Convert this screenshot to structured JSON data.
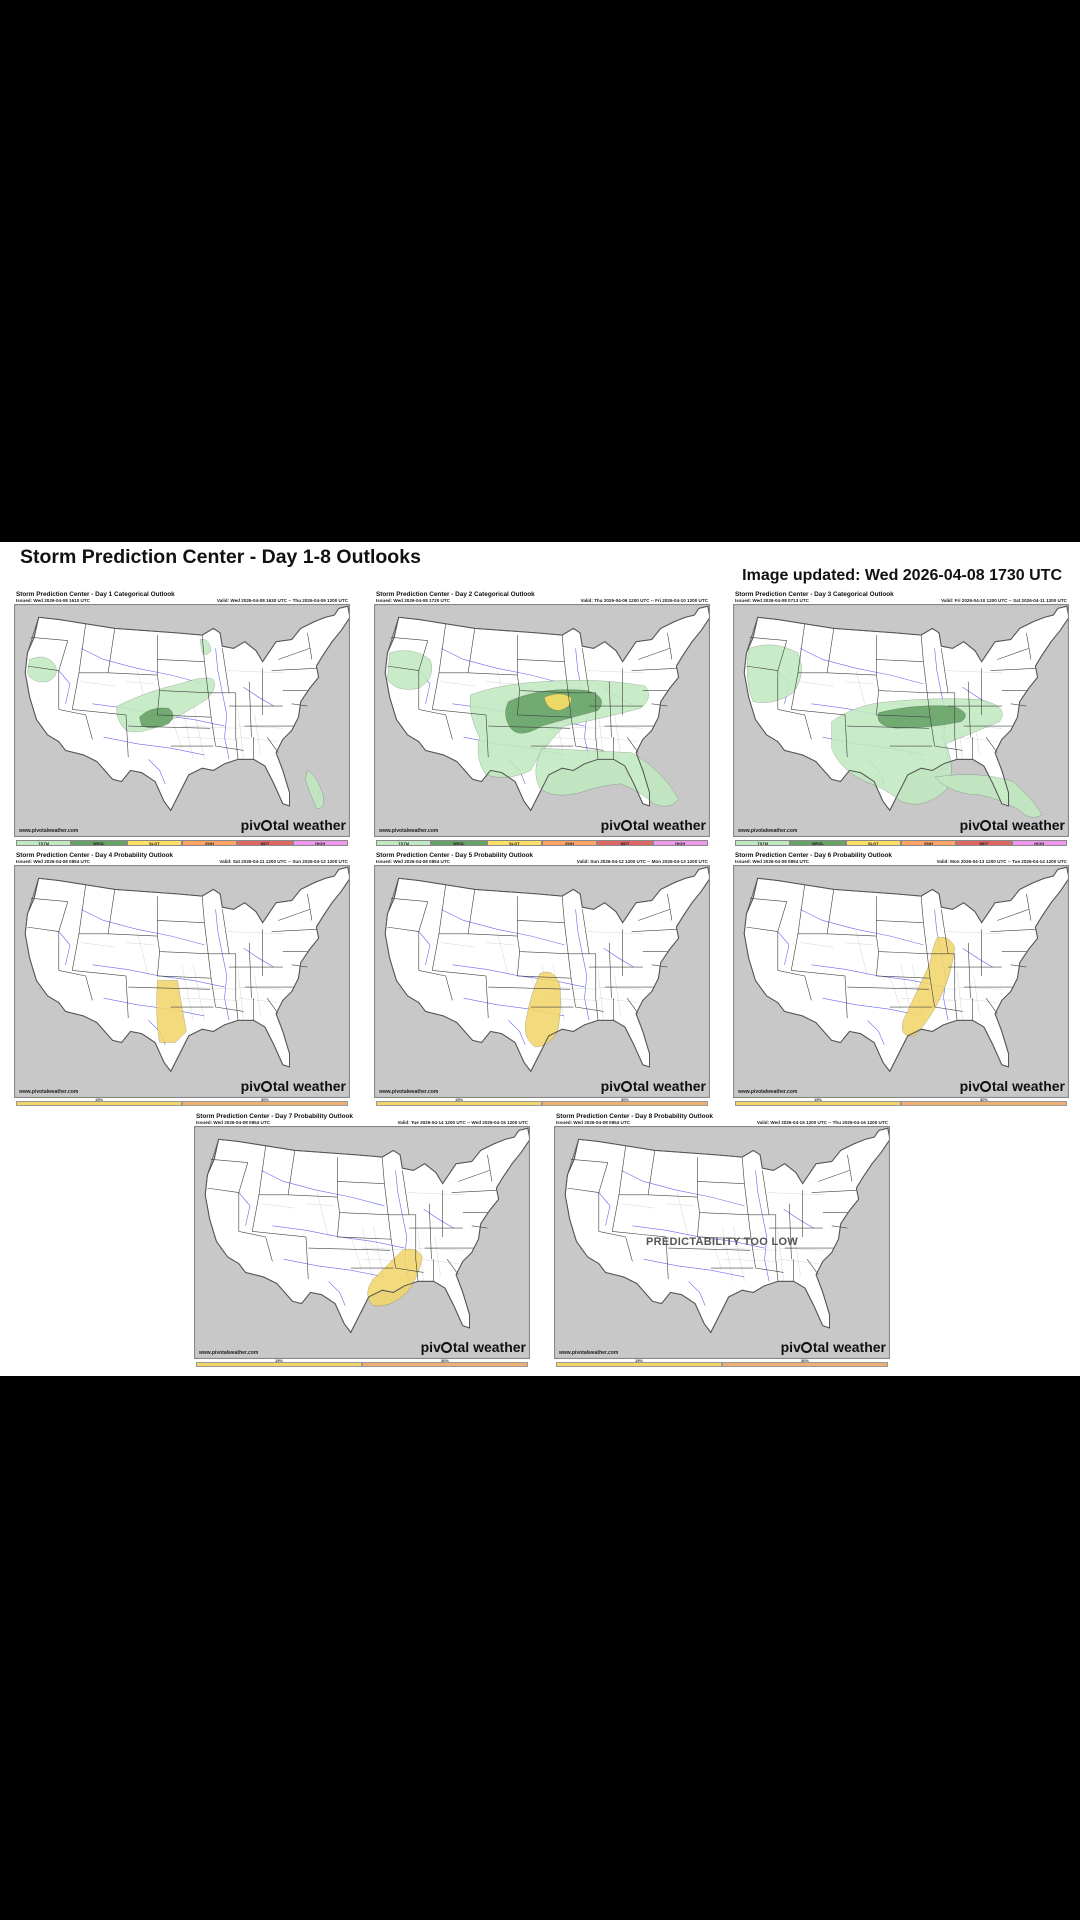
{
  "page": {
    "title": "Storm Prediction Center - Day 1-8 Outlooks",
    "updated": "Image updated: Wed 2026-04-08 1730 UTC"
  },
  "colors": {
    "tstm": "#c1e9c1",
    "mrgl": "#66a366",
    "slgt": "#ffe066",
    "enh": "#ffa366",
    "mdt": "#e06666",
    "high": "#ee99ee",
    "prob15": "#f2d66b",
    "prob30": "#f0b073",
    "land": "#ffffff",
    "outside": "#c8c8c8"
  },
  "categorical_legend": [
    "TSTM",
    "MRGL",
    "SLGT",
    "ENH",
    "MDT",
    "HIGH"
  ],
  "probability_legend": [
    "15%",
    "30%"
  ],
  "watermark": {
    "pre": "piv",
    "post": "tal weather"
  },
  "site": "www.pivotalweather.com",
  "outlooks": [
    {
      "day": 1,
      "kind": "categorical",
      "title": "Storm Prediction Center - Day 1 Categorical Outlook",
      "issued": "Issued: Wed 2026-04-08 1610 UTC",
      "valid": "Valid: Wed 2026-04-08 1630 UTC -- Thu 2026-04-09 1200 UTC",
      "areas": [
        "tstm",
        "mrgl"
      ]
    },
    {
      "day": 2,
      "kind": "categorical",
      "title": "Storm Prediction Center - Day 2 Categorical Outlook",
      "issued": "Issued: Wed 2026-04-08 1720 UTC",
      "valid": "Valid: Thu 2026-04-09 1200 UTC -- Fri 2026-04-10 1200 UTC",
      "areas": [
        "tstm",
        "mrgl",
        "slgt"
      ]
    },
    {
      "day": 3,
      "kind": "categorical",
      "title": "Storm Prediction Center - Day 3 Categorical Outlook",
      "issued": "Issued: Wed 2026-04-08 0713 UTC",
      "valid": "Valid: Fri 2026-04-10 1200 UTC -- Sat 2026-04-11 1200 UTC",
      "areas": [
        "tstm",
        "mrgl"
      ]
    },
    {
      "day": 4,
      "kind": "probability",
      "title": "Storm Prediction Center - Day 4 Probability Outlook",
      "issued": "Issued: Wed 2026-04-08 0854 UTC",
      "valid": "Valid: Sat 2026-04-11 1200 UTC -- Sun 2026-04-12 1200 UTC",
      "areas": [
        "15%"
      ]
    },
    {
      "day": 5,
      "kind": "probability",
      "title": "Storm Prediction Center - Day 5 Probability Outlook",
      "issued": "Issued: Wed 2026-04-08 0854 UTC",
      "valid": "Valid: Sun 2026-04-12 1200 UTC -- Mon 2026-04-13 1200 UTC",
      "areas": [
        "15%"
      ]
    },
    {
      "day": 6,
      "kind": "probability",
      "title": "Storm Prediction Center - Day 6 Probability Outlook",
      "issued": "Issued: Wed 2026-04-08 0854 UTC",
      "valid": "Valid: Mon 2026-04-13 1200 UTC -- Tue 2026-04-14 1200 UTC",
      "areas": [
        "15%"
      ]
    },
    {
      "day": 7,
      "kind": "probability",
      "title": "Storm Prediction Center - Day 7 Probability Outlook",
      "issued": "Issued: Wed 2026-04-08 0854 UTC",
      "valid": "Valid: Tue 2026-04-14 1200 UTC -- Wed 2026-04-15 1200 UTC",
      "areas": [
        "15%"
      ]
    },
    {
      "day": 8,
      "kind": "probability",
      "title": "Storm Prediction Center - Day 8 Probability Outlook",
      "issued": "Issued: Wed 2026-04-08 0854 UTC",
      "valid": "Valid: Wed 2026-04-15 1200 UTC -- Thu 2026-04-16 1200 UTC",
      "areas": [],
      "note": "PREDICTABILITY TOO LOW"
    }
  ]
}
